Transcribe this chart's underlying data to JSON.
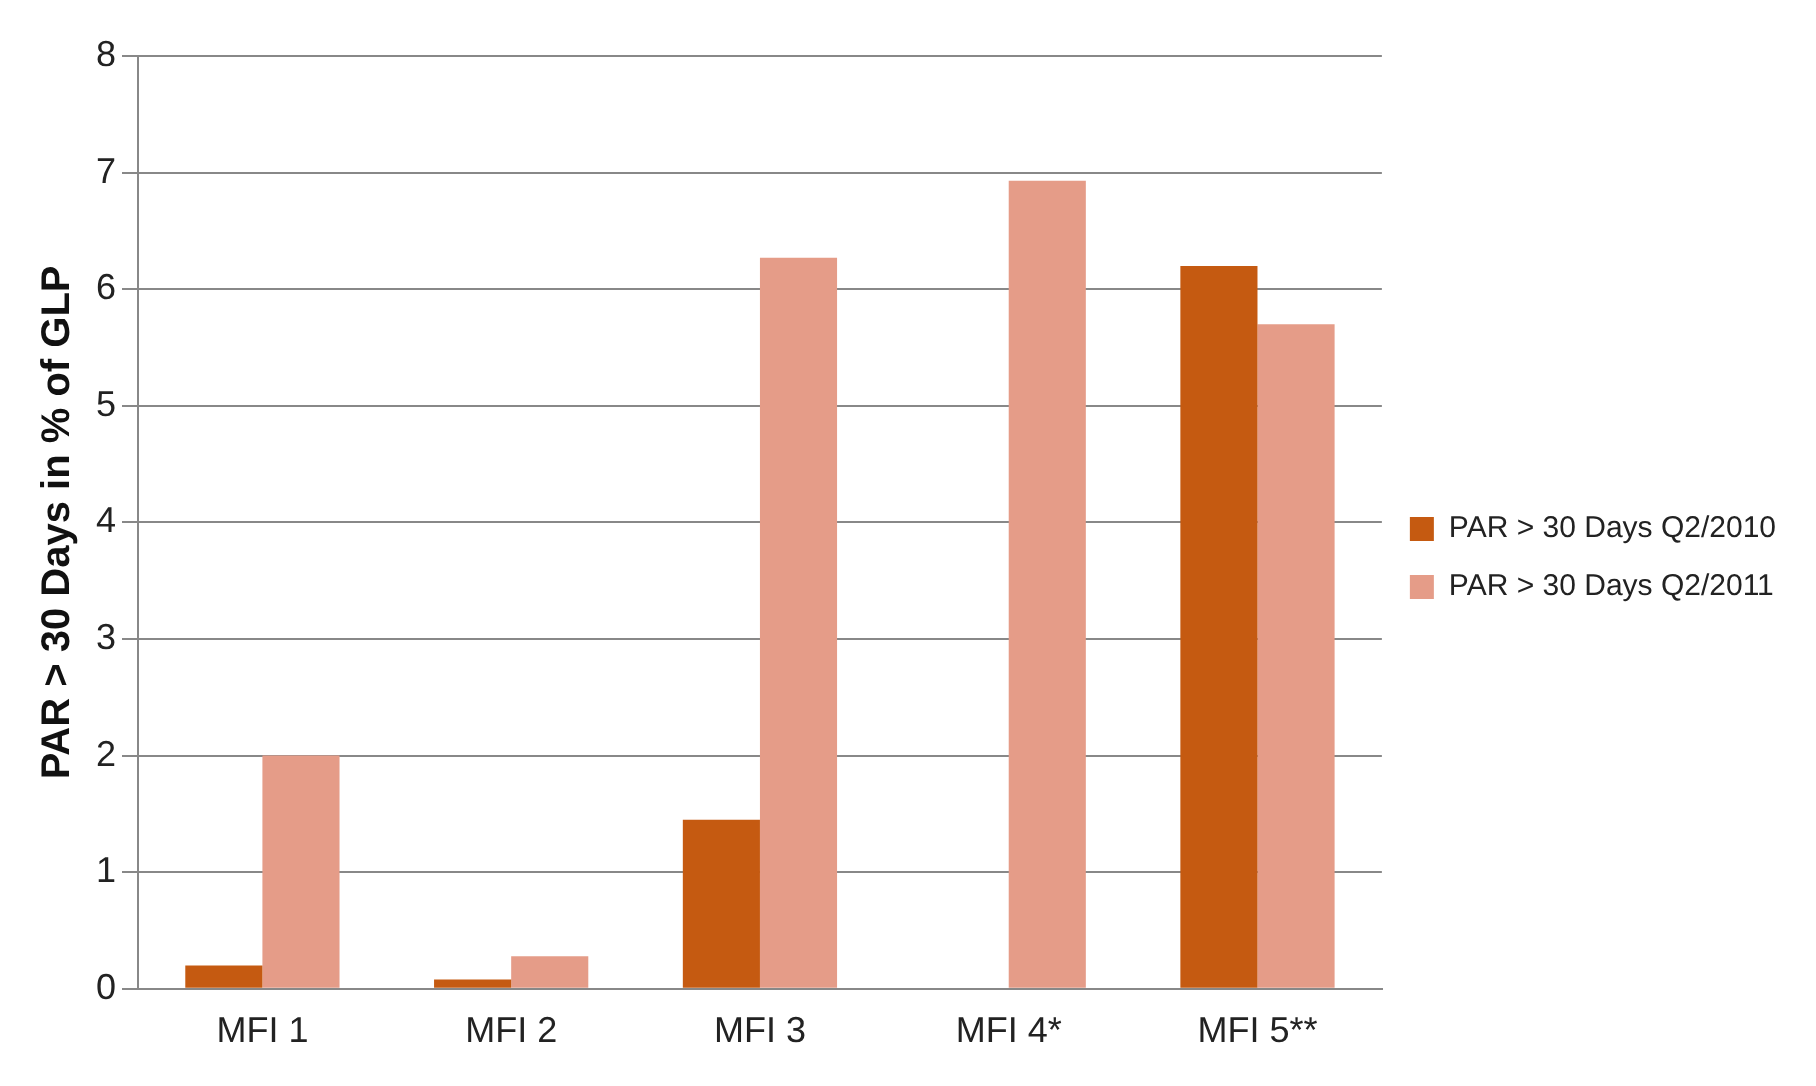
{
  "chart_data": {
    "type": "bar",
    "ylabel": "PAR > 30 Days in % of GLP",
    "categories": [
      "MFI 1",
      "MFI 2",
      "MFI 3",
      "MFI 4*",
      "MFI 5**"
    ],
    "series": [
      {
        "name": "PAR > 30 Days Q2/2010",
        "color": "#c55a11",
        "values": [
          0.2,
          0.08,
          1.45,
          null,
          6.2
        ]
      },
      {
        "name": "PAR > 30 Days Q2/2011",
        "color": "#e59c88",
        "values": [
          2.0,
          0.28,
          6.27,
          6.93,
          5.7
        ]
      }
    ],
    "ylim": [
      0,
      8
    ],
    "yticks": [
      0,
      1,
      2,
      3,
      4,
      5,
      6,
      7,
      8
    ],
    "grid": "y",
    "legend": "right"
  }
}
